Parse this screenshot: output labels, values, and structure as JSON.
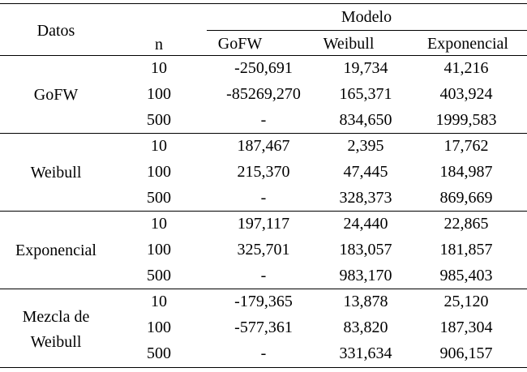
{
  "header": {
    "datos": "Datos",
    "modelo": "Modelo",
    "n": "n",
    "models": [
      "GoFW",
      "Weibull",
      "Exponencial"
    ]
  },
  "groups": [
    {
      "label_lines": [
        "GoFW"
      ],
      "rows": [
        {
          "n": "10",
          "values": [
            "-250,691",
            "19,734",
            "41,216"
          ]
        },
        {
          "n": "100",
          "values": [
            "-85269,270",
            "165,371",
            "403,924"
          ]
        },
        {
          "n": "500",
          "values": [
            "-",
            "834,650",
            "1999,583"
          ]
        }
      ]
    },
    {
      "label_lines": [
        "Weibull"
      ],
      "rows": [
        {
          "n": "10",
          "values": [
            "187,467",
            "2,395",
            "17,762"
          ]
        },
        {
          "n": "100",
          "values": [
            "215,370",
            "47,445",
            "184,987"
          ]
        },
        {
          "n": "500",
          "values": [
            "-",
            "328,373",
            "869,669"
          ]
        }
      ]
    },
    {
      "label_lines": [
        "Exponencial"
      ],
      "rows": [
        {
          "n": "10",
          "values": [
            "197,117",
            "24,440",
            "22,865"
          ]
        },
        {
          "n": "100",
          "values": [
            "325,701",
            "183,057",
            "181,857"
          ]
        },
        {
          "n": "500",
          "values": [
            "-",
            "983,170",
            "985,403"
          ]
        }
      ]
    },
    {
      "label_lines": [
        "Mezcla de",
        "Weibull"
      ],
      "rows": [
        {
          "n": "10",
          "values": [
            "-179,365",
            "13,878",
            "25,120"
          ]
        },
        {
          "n": "100",
          "values": [
            "-577,361",
            "83,820",
            "187,304"
          ]
        },
        {
          "n": "500",
          "values": [
            "-",
            "331,634",
            "906,157"
          ]
        }
      ]
    }
  ]
}
